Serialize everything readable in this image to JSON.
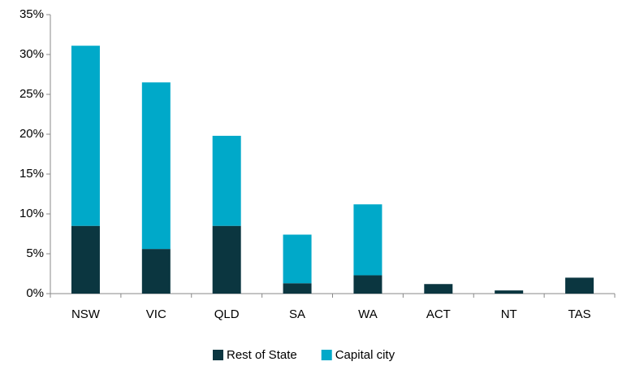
{
  "chart_data": {
    "type": "stacked_bar",
    "categories": [
      "NSW",
      "VIC",
      "QLD",
      "SA",
      "WA",
      "ACT",
      "NT",
      "TAS"
    ],
    "series": [
      {
        "name": "Rest of State",
        "color": "#0b3640",
        "values": [
          8.5,
          5.6,
          8.5,
          1.3,
          2.3,
          1.2,
          0.4,
          2.0
        ]
      },
      {
        "name": "Capital city",
        "color": "#00a9c9",
        "values": [
          22.6,
          20.9,
          11.3,
          6.1,
          8.9,
          0,
          0,
          0
        ]
      }
    ],
    "ylim": [
      0,
      35
    ],
    "yticks": [
      {
        "value": 0,
        "label": "0%"
      },
      {
        "value": 5,
        "label": "5%"
      },
      {
        "value": 10,
        "label": "10%"
      },
      {
        "value": 15,
        "label": "15%"
      },
      {
        "value": 20,
        "label": "20%"
      },
      {
        "value": 25,
        "label": "25%"
      },
      {
        "value": 30,
        "label": "30%"
      },
      {
        "value": 35,
        "label": "35%"
      }
    ],
    "legend": "bottom"
  }
}
